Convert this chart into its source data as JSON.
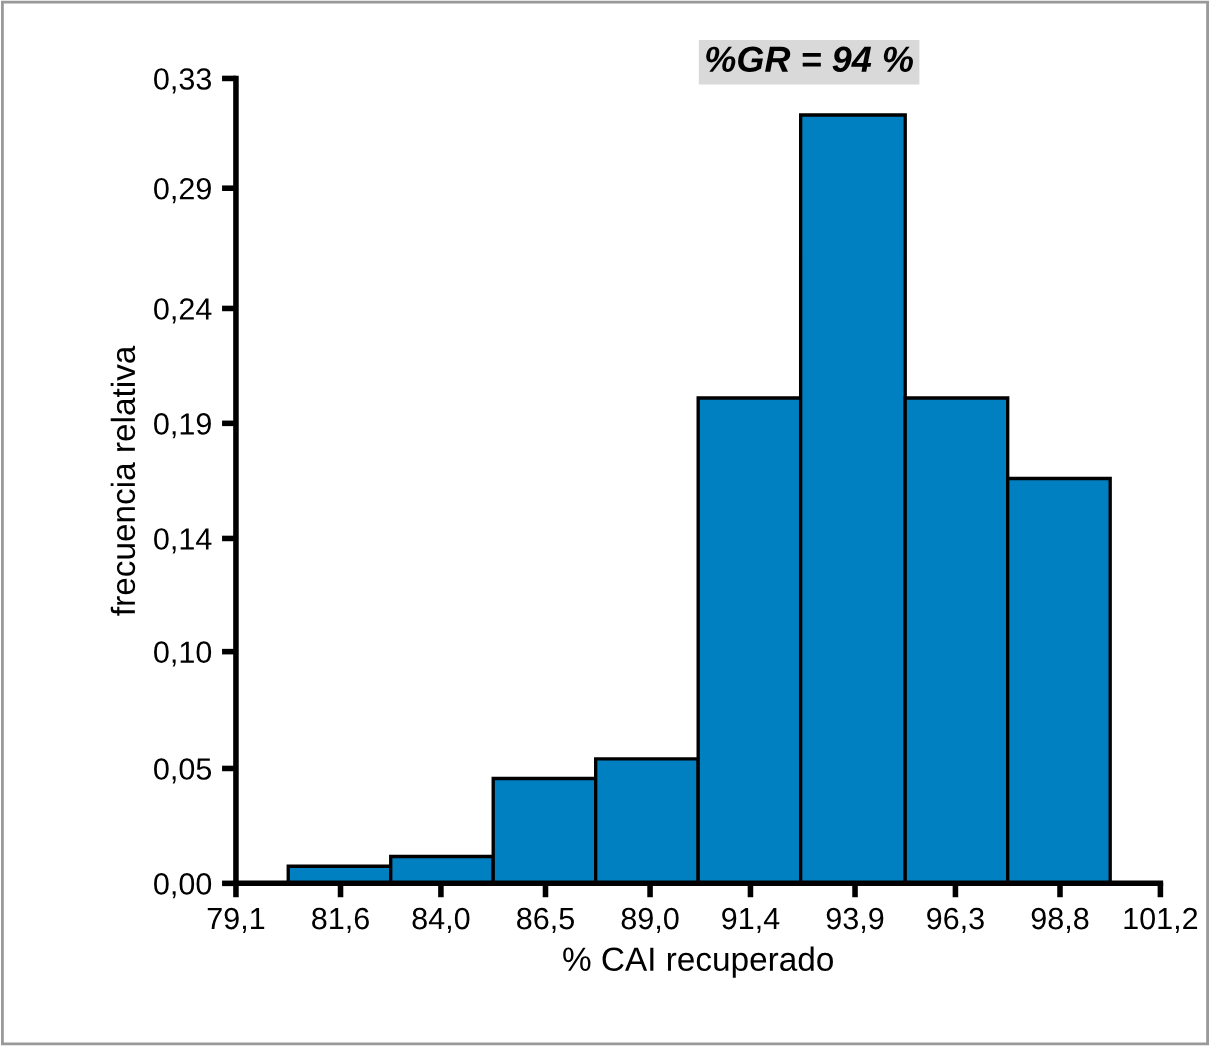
{
  "chart_data": {
    "type": "histogram",
    "xlabel": "% CAI recuperado",
    "ylabel": "frecuencia relativa",
    "annotations": [
      "%GR = 94 %"
    ],
    "bins": [
      80.35,
      82.8,
      85.25,
      87.7,
      90.15,
      92.6,
      95.1,
      97.55,
      100.0
    ],
    "values": [
      0.007,
      0.011,
      0.043,
      0.051,
      0.199,
      0.315,
      0.199,
      0.166
    ],
    "color": "#0080c0",
    "xlim": [
      79.1,
      101.2
    ],
    "xticks": [
      {
        "value": 79.1,
        "label": "79,1"
      },
      {
        "value": 81.6,
        "label": "81,6"
      },
      {
        "value": 84.0,
        "label": "84,0"
      },
      {
        "value": 86.5,
        "label": "86,5"
      },
      {
        "value": 89.0,
        "label": "89,0"
      },
      {
        "value": 91.4,
        "label": "91,4"
      },
      {
        "value": 93.9,
        "label": "93,9"
      },
      {
        "value": 96.3,
        "label": "96,3"
      },
      {
        "value": 98.8,
        "label": "98,8"
      },
      {
        "value": 101.2,
        "label": "101,2"
      }
    ],
    "ylim": [
      0,
      0.33
    ],
    "yticks": [
      {
        "value": 0,
        "label": "0,00"
      },
      {
        "value": 0.0471,
        "label": "0,05"
      },
      {
        "value": 0.095,
        "label": "0,10"
      },
      {
        "value": 0.1414,
        "label": "0,14"
      },
      {
        "value": 0.1886,
        "label": "0,19"
      },
      {
        "value": 0.2357,
        "label": "0,24"
      },
      {
        "value": 0.285,
        "label": "0,29"
      },
      {
        "value": 0.33,
        "label": "0,33"
      }
    ],
    "grid": false
  }
}
